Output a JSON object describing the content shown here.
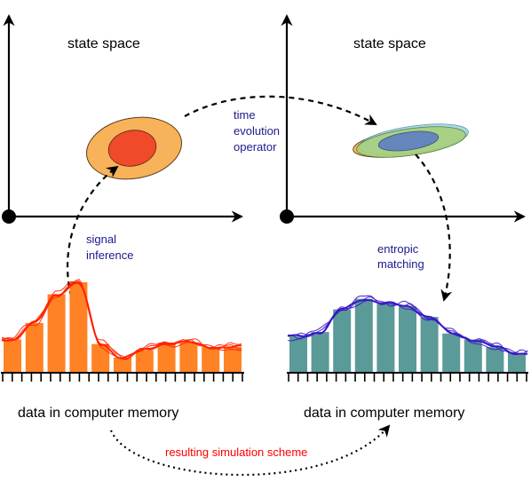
{
  "labels": {
    "state_space_left": "state space",
    "state_space_right": "state space",
    "time_evolution": [
      "time",
      "evolution",
      "operator"
    ],
    "signal_inference": [
      "signal",
      "inference"
    ],
    "entropic_matching": [
      "entropic",
      "matching"
    ],
    "data_memory_left": "data in computer memory",
    "data_memory_right": "data in computer memory",
    "resulting_scheme": "resulting simulation scheme"
  },
  "histograms": {
    "left_bar_values": [
      0.22,
      0.33,
      0.52,
      0.6,
      0.19,
      0.1,
      0.15,
      0.2,
      0.2,
      0.17,
      0.17
    ],
    "right_bar_values": [
      0.24,
      0.27,
      0.42,
      0.49,
      0.46,
      0.44,
      0.37,
      0.26,
      0.22,
      0.17,
      0.13
    ]
  },
  "colors": {
    "axis": "#000000",
    "left_bars": "#ff8225",
    "right_bars": "#5a9a98",
    "left_curve": "#ff2200",
    "right_curve": "#3a18c8",
    "inference_label": "#1a1a8c",
    "scheme_label": "#ff0000",
    "outer_ellipse": "#f7b25a",
    "inner_ellipse": "#f04a2a",
    "green_ellipse": "#a9d07e",
    "cyan_ellipse": "#9fd6e6",
    "blue_ellipse": "#5a7ac6"
  }
}
